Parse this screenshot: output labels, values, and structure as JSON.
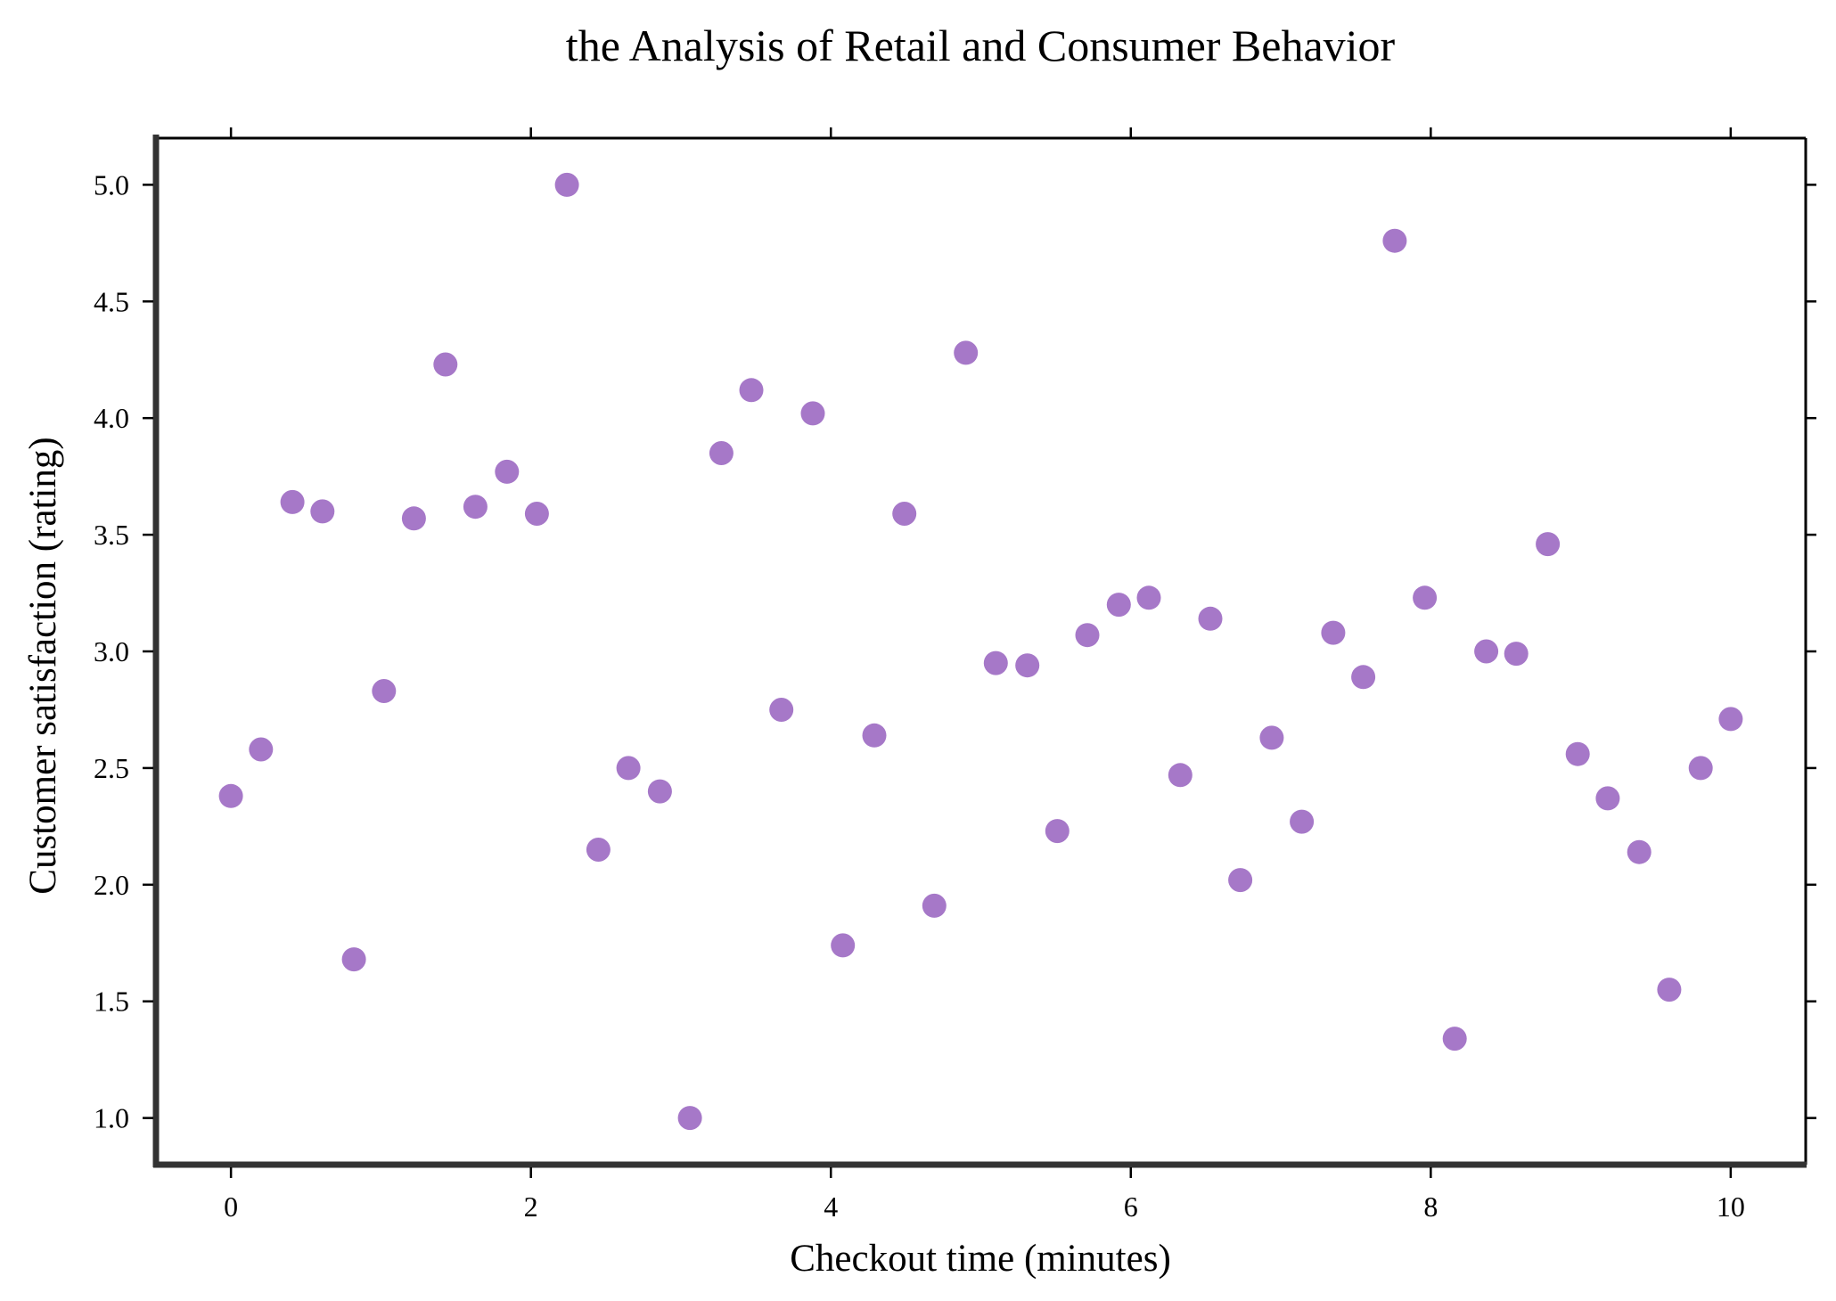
{
  "chart_data": {
    "type": "scatter",
    "title": "the Analysis of Retail and Consumer Behavior",
    "xlabel": "Checkout time (minutes)",
    "ylabel": "Customer satisfaction (rating)",
    "xlim": [
      -0.5,
      10.5
    ],
    "ylim": [
      0.8,
      5.2
    ],
    "xticks": [
      0,
      2,
      4,
      6,
      8,
      10
    ],
    "xtick_labels": [
      "0",
      "2",
      "4",
      "6",
      "8",
      "10"
    ],
    "yticks": [
      1.0,
      1.5,
      2.0,
      2.5,
      3.0,
      3.5,
      4.0,
      4.5,
      5.0
    ],
    "ytick_labels": [
      "1.0",
      "1.5",
      "2.0",
      "2.5",
      "3.0",
      "3.5",
      "4.0",
      "4.5",
      "5.0"
    ],
    "grid": false,
    "marker_color": "#a678c8",
    "x": [
      0.0,
      0.2,
      0.41,
      0.61,
      0.82,
      1.02,
      1.22,
      1.43,
      1.63,
      1.84,
      2.04,
      2.24,
      2.45,
      2.65,
      2.86,
      3.06,
      3.27,
      3.47,
      3.67,
      3.88,
      4.08,
      4.29,
      4.49,
      4.69,
      4.9,
      5.1,
      5.31,
      5.51,
      5.71,
      5.92,
      6.12,
      6.33,
      6.53,
      6.73,
      6.94,
      7.14,
      7.35,
      7.55,
      7.76,
      7.96,
      8.16,
      8.37,
      8.57,
      8.78,
      8.98,
      9.18,
      9.39,
      9.59,
      9.8,
      10.0
    ],
    "y": [
      2.38,
      2.58,
      3.64,
      3.6,
      1.68,
      2.83,
      3.57,
      4.23,
      3.62,
      3.77,
      3.59,
      5.0,
      2.15,
      2.5,
      2.4,
      1.0,
      3.85,
      4.12,
      2.75,
      4.02,
      1.74,
      2.64,
      3.59,
      1.91,
      4.28,
      2.95,
      2.94,
      2.23,
      3.07,
      3.2,
      3.23,
      2.47,
      3.14,
      2.02,
      2.63,
      2.27,
      3.08,
      2.89,
      4.76,
      3.23,
      1.34,
      3.0,
      2.99,
      3.46,
      2.56,
      2.37,
      2.14,
      1.55,
      2.5,
      2.71
    ]
  }
}
